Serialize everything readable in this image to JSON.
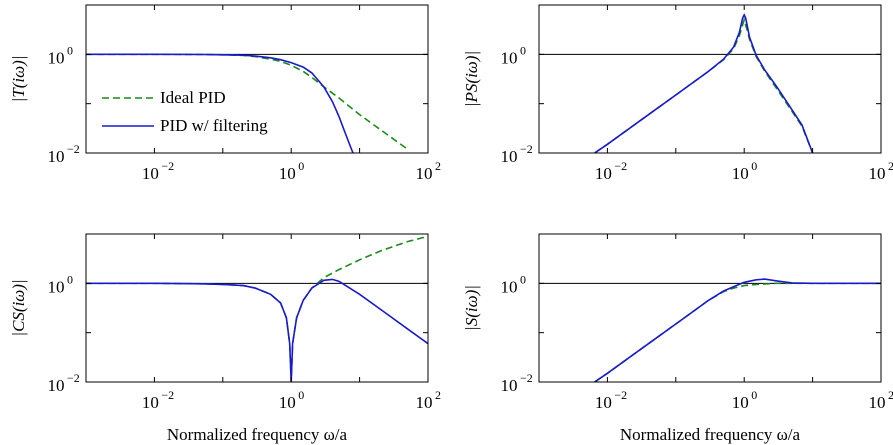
{
  "chart_data": [
    {
      "type": "line",
      "ylabel": "|T(iω)|",
      "xscale": "log",
      "yscale": "log",
      "xlim": [
        0.001,
        100
      ],
      "ylim": [
        0.01,
        10
      ],
      "xticks": [
        {
          "v": 0.01,
          "b": "10",
          "e": "−2"
        },
        {
          "v": 1,
          "b": "10",
          "e": "0"
        },
        {
          "v": 100,
          "b": "10",
          "e": "2"
        }
      ],
      "yticks": [
        {
          "v": 0.01,
          "b": "10",
          "e": "−2"
        },
        {
          "v": 1,
          "b": "10",
          "e": "0"
        }
      ],
      "reference_line": 1,
      "legend": {
        "placement": "bottom-left",
        "entries": [
          "Ideal PID",
          "PID w/ filtering"
        ]
      },
      "series": [
        {
          "name": "Ideal PID",
          "style": "dashed",
          "color": "#1a8a1a",
          "x": [
            0.001,
            0.01,
            0.05,
            0.1,
            0.2,
            0.3,
            0.5,
            0.7,
            1,
            1.5,
            2,
            3,
            5,
            10,
            20,
            50
          ],
          "y": [
            1.0,
            1.0,
            0.99,
            0.98,
            0.95,
            0.9,
            0.8,
            0.72,
            0.6,
            0.45,
            0.34,
            0.22,
            0.13,
            0.06,
            0.03,
            0.012
          ]
        },
        {
          "name": "PID w/ filtering",
          "style": "solid",
          "color": "#1a1acc",
          "x": [
            0.001,
            0.01,
            0.05,
            0.1,
            0.2,
            0.3,
            0.5,
            0.7,
            1,
            1.5,
            2,
            3,
            4,
            5,
            6,
            7,
            8
          ],
          "y": [
            1.0,
            1.0,
            0.99,
            0.98,
            0.96,
            0.92,
            0.85,
            0.78,
            0.68,
            0.55,
            0.42,
            0.22,
            0.11,
            0.055,
            0.028,
            0.016,
            0.01
          ]
        }
      ]
    },
    {
      "type": "line",
      "ylabel": "|PS(iω)|",
      "xscale": "log",
      "yscale": "log",
      "xlim": [
        0.001,
        100
      ],
      "ylim": [
        0.01,
        10
      ],
      "xticks": [
        {
          "v": 0.01,
          "b": "10",
          "e": "−2"
        },
        {
          "v": 1,
          "b": "10",
          "e": "0"
        },
        {
          "v": 100,
          "b": "10",
          "e": "2"
        }
      ],
      "yticks": [
        {
          "v": 0.01,
          "b": "10",
          "e": "−2"
        },
        {
          "v": 1,
          "b": "10",
          "e": "0"
        }
      ],
      "reference_line": 1,
      "series": [
        {
          "name": "Ideal PID",
          "style": "dashed",
          "color": "#1a8a1a",
          "x": [
            0.0065,
            0.01,
            0.05,
            0.1,
            0.3,
            0.5,
            0.7,
            0.85,
            0.95,
            1.0,
            1.05,
            1.2,
            1.5,
            2,
            3,
            5,
            7,
            10
          ],
          "y": [
            0.01,
            0.015,
            0.075,
            0.15,
            0.45,
            0.78,
            1.3,
            2.4,
            4.0,
            5.0,
            4.0,
            2.0,
            0.9,
            0.45,
            0.2,
            0.07,
            0.035,
            0.01
          ]
        },
        {
          "name": "PID w/ filtering",
          "style": "solid",
          "color": "#1a1acc",
          "x": [
            0.0065,
            0.01,
            0.05,
            0.1,
            0.3,
            0.5,
            0.7,
            0.85,
            0.95,
            1.0,
            1.05,
            1.2,
            1.5,
            2,
            3,
            5,
            7,
            10
          ],
          "y": [
            0.01,
            0.015,
            0.075,
            0.15,
            0.45,
            0.8,
            1.4,
            2.8,
            5.5,
            6.3,
            5.5,
            2.2,
            0.95,
            0.48,
            0.22,
            0.075,
            0.037,
            0.01
          ]
        }
      ]
    },
    {
      "type": "line",
      "ylabel": "|CS(iω)|",
      "xlabel": "Normalized frequency ω/a",
      "xscale": "log",
      "yscale": "log",
      "xlim": [
        0.001,
        100
      ],
      "ylim": [
        0.01,
        10
      ],
      "xticks": [
        {
          "v": 0.01,
          "b": "10",
          "e": "−2"
        },
        {
          "v": 1,
          "b": "10",
          "e": "0"
        },
        {
          "v": 100,
          "b": "10",
          "e": "2"
        }
      ],
      "yticks": [
        {
          "v": 0.01,
          "b": "10",
          "e": "−2"
        },
        {
          "v": 1,
          "b": "10",
          "e": "0"
        }
      ],
      "reference_line": 1,
      "series": [
        {
          "name": "Ideal PID",
          "style": "dashed",
          "color": "#1a8a1a",
          "x": [
            0.001,
            0.01,
            0.05,
            0.1,
            0.2,
            0.3,
            0.5,
            0.7,
            0.85,
            0.95,
            1.0,
            1.05,
            1.2,
            1.5,
            2,
            3,
            5,
            10,
            20,
            50,
            100
          ],
          "y": [
            1.0,
            1.0,
            0.98,
            0.95,
            0.9,
            0.8,
            0.6,
            0.4,
            0.2,
            0.06,
            0.01,
            0.06,
            0.2,
            0.45,
            0.8,
            1.3,
            1.9,
            3.0,
            4.5,
            7.0,
            9.0
          ]
        },
        {
          "name": "PID w/ filtering",
          "style": "solid",
          "color": "#1a1acc",
          "x": [
            0.001,
            0.01,
            0.05,
            0.1,
            0.2,
            0.3,
            0.5,
            0.7,
            0.85,
            0.95,
            1.0,
            1.05,
            1.2,
            1.5,
            2,
            3,
            4,
            5,
            10,
            20,
            50,
            100
          ],
          "y": [
            1.0,
            1.0,
            0.98,
            0.95,
            0.9,
            0.8,
            0.6,
            0.4,
            0.2,
            0.06,
            0.01,
            0.06,
            0.2,
            0.45,
            0.8,
            1.15,
            1.2,
            1.1,
            0.6,
            0.3,
            0.12,
            0.06
          ]
        }
      ]
    },
    {
      "type": "line",
      "ylabel": "|S(iω)|",
      "xlabel": "Normalized frequency ω/a",
      "xscale": "log",
      "yscale": "log",
      "xlim": [
        0.001,
        100
      ],
      "ylim": [
        0.01,
        10
      ],
      "xticks": [
        {
          "v": 0.01,
          "b": "10",
          "e": "−2"
        },
        {
          "v": 1,
          "b": "10",
          "e": "0"
        },
        {
          "v": 100,
          "b": "10",
          "e": "2"
        }
      ],
      "yticks": [
        {
          "v": 0.01,
          "b": "10",
          "e": "−2"
        },
        {
          "v": 1,
          "b": "10",
          "e": "0"
        }
      ],
      "reference_line": 1,
      "series": [
        {
          "name": "Ideal PID",
          "style": "dashed",
          "color": "#1a8a1a",
          "x": [
            0.0065,
            0.01,
            0.05,
            0.1,
            0.2,
            0.3,
            0.5,
            0.7,
            1,
            1.5,
            2,
            3,
            5,
            10,
            100
          ],
          "y": [
            0.01,
            0.015,
            0.075,
            0.15,
            0.3,
            0.45,
            0.68,
            0.8,
            0.9,
            0.95,
            0.97,
            1.0,
            1.0,
            1.0,
            1.0
          ]
        },
        {
          "name": "PID w/ filtering",
          "style": "solid",
          "color": "#1a1acc",
          "x": [
            0.0065,
            0.01,
            0.05,
            0.1,
            0.2,
            0.3,
            0.5,
            0.7,
            1,
            1.5,
            2,
            3,
            5,
            10,
            100
          ],
          "y": [
            0.01,
            0.015,
            0.075,
            0.15,
            0.3,
            0.45,
            0.7,
            0.85,
            1.05,
            1.18,
            1.22,
            1.12,
            1.02,
            1.0,
            1.0
          ]
        }
      ]
    }
  ]
}
